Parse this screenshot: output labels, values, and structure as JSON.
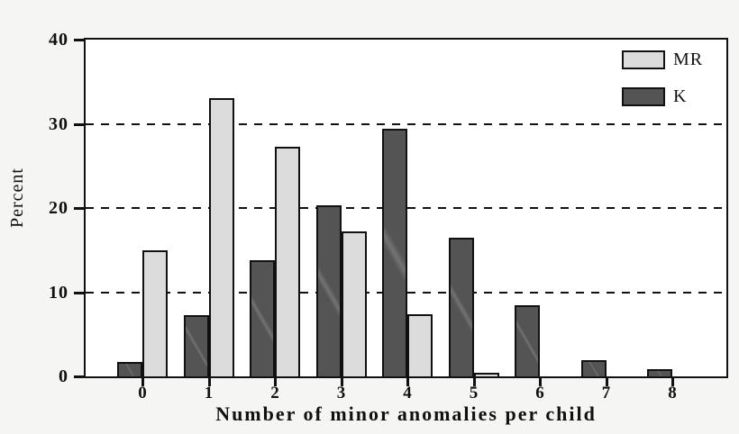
{
  "figure": {
    "background": "#f5f5f3",
    "plot_background": "#ffffff",
    "frame_color": "#111111"
  },
  "y_axis": {
    "label": "Percent",
    "tick_labels": [
      "40",
      "30",
      "20",
      "10",
      "0"
    ]
  },
  "x_axis": {
    "label": "Number of minor anomalies per child",
    "tick_labels": [
      "0",
      "1",
      "2",
      "3",
      "4",
      "5",
      "6",
      "7",
      "8"
    ]
  },
  "legend": {
    "items": [
      {
        "label": "MR",
        "color": "#dcdcdc"
      },
      {
        "label": "K",
        "color": "#545454"
      }
    ]
  },
  "chart_data": {
    "type": "bar",
    "title": "",
    "xlabel": "Number of minor anomalies per child",
    "ylabel": "Percent",
    "categories": [
      0,
      1,
      2,
      3,
      4,
      5,
      6,
      7,
      8
    ],
    "series": [
      {
        "name": "MR",
        "color": "#dcdcdc",
        "values": [
          15.0,
          33.0,
          27.3,
          17.2,
          7.4,
          0.4,
          0,
          0,
          0
        ]
      },
      {
        "name": "K",
        "color": "#545454",
        "values": [
          1.7,
          7.3,
          13.8,
          20.3,
          29.4,
          16.5,
          8.5,
          1.9,
          0.9
        ]
      }
    ],
    "bar_order_per_category": [
      "K",
      "MR"
    ],
    "ylim": [
      0,
      40
    ],
    "yticks": [
      0,
      10,
      20,
      30,
      40
    ],
    "gridlines_at": [
      10,
      20,
      30
    ],
    "grid_style": "dashed horizontal",
    "legend_position": "top-right inside plot"
  }
}
